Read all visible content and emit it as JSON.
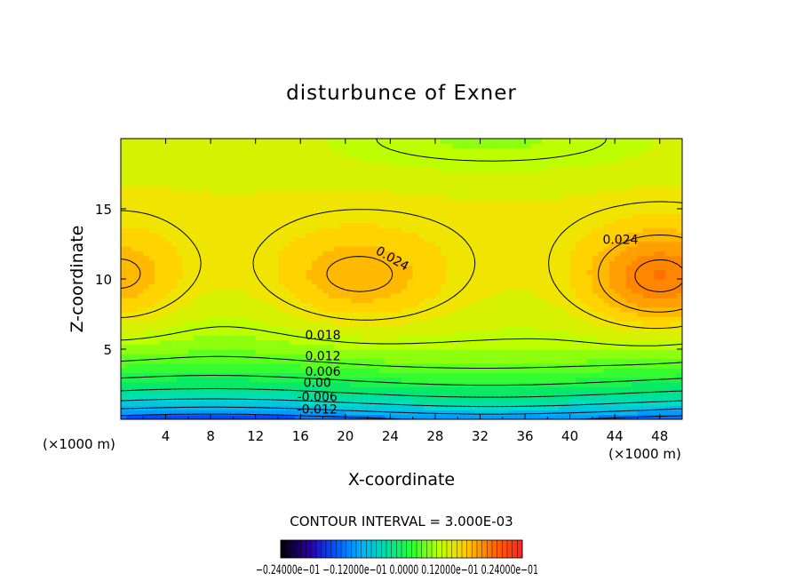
{
  "chart_data": {
    "type": "contour",
    "title": "disturbunce of Exner",
    "xlabel": "X-coordinate",
    "ylabel": "Z-coordinate",
    "x_unit": "(×1000 m)",
    "x_unit_right": "(×1000 m)",
    "xlim": [
      0,
      50
    ],
    "ylim": [
      0,
      20
    ],
    "x_ticks": [
      "4",
      "8",
      "12",
      "16",
      "20",
      "24",
      "28",
      "32",
      "36",
      "40",
      "44",
      "48"
    ],
    "y_ticks": [
      "5",
      "10",
      "15"
    ],
    "contour_interval_text": "CONTOUR INTERVAL = 3.000E-03",
    "contour_labels": [
      {
        "text": "0.024",
        "x": 24,
        "z": 11.2
      },
      {
        "text": "0.024",
        "x": 44.5,
        "z": 12.5
      },
      {
        "text": "0.018",
        "x": 18,
        "z": 5.7
      },
      {
        "text": "0.012",
        "x": 18,
        "z": 4.2
      },
      {
        "text": "0.006",
        "x": 18,
        "z": 3.1
      },
      {
        "text": "0.00",
        "x": 17.5,
        "z": 2.3
      },
      {
        "text": "-0.006",
        "x": 17.5,
        "z": 1.3
      },
      {
        "text": "-0.012",
        "x": 17.5,
        "z": 0.4
      }
    ],
    "colorbar": {
      "min": -0.024,
      "max": 0.024,
      "tick_labels_text": "−0.24000e−01  −0.12000e−01  0.0000  0.12000e−01  0.24000e−01"
    }
  }
}
